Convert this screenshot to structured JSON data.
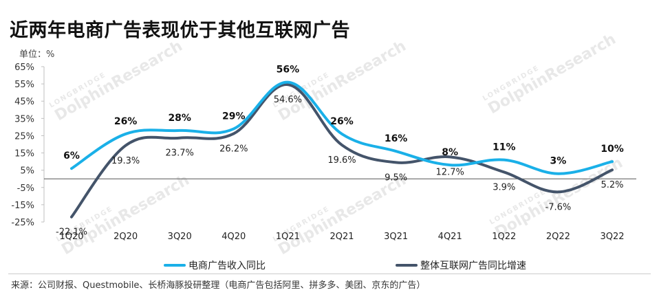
{
  "title": "近两年电商广告表现优于其他互联网广告",
  "unit_label": "单位：%",
  "source": "来源：公司财报、Questmobile、长桥海豚投研整理（电商广告包括阿里、拼多多、美团、京东的广告）",
  "watermark": {
    "top": "LONGBRIDGE",
    "main": "DolphinResearch"
  },
  "colors": {
    "ecommerce": "#1AB0E8",
    "internet": "#44546A",
    "zero_line": "#555555"
  },
  "chart_data": {
    "type": "line",
    "categories": [
      "1Q20",
      "2Q20",
      "3Q20",
      "4Q20",
      "1Q21",
      "2Q21",
      "3Q21",
      "4Q21",
      "1Q22",
      "2Q22",
      "3Q22"
    ],
    "ylim": [
      -25,
      65
    ],
    "yticks": [
      -25,
      -15,
      -5,
      5,
      15,
      25,
      35,
      45,
      55,
      65
    ],
    "ytick_labels": [
      "-25%",
      "-15%",
      "-5%",
      "5%",
      "15%",
      "25%",
      "35%",
      "45%",
      "55%",
      "65%"
    ],
    "xlabel": "",
    "ylabel": "",
    "grid": false,
    "legend_position": "bottom",
    "series": [
      {
        "name": "电商广告收入同比",
        "values": [
          6,
          26,
          28,
          29,
          56,
          26,
          16,
          8,
          11,
          3,
          10
        ],
        "labels": [
          "6%",
          "26%",
          "28%",
          "29%",
          "56%",
          "26%",
          "16%",
          "8%",
          "11%",
          "3%",
          "10%"
        ]
      },
      {
        "name": "整体互联网广告同比增速",
        "values": [
          -22.1,
          19.3,
          23.7,
          26.2,
          54.6,
          19.6,
          9.5,
          12.7,
          3.9,
          -7.6,
          5.2
        ],
        "labels": [
          "-22.1%",
          "19.3%",
          "23.7%",
          "26.2%",
          "54.6%",
          "19.6%",
          "9.5%",
          "12.7%",
          "3.9%",
          "-7.6%",
          "5.2%"
        ]
      }
    ]
  }
}
